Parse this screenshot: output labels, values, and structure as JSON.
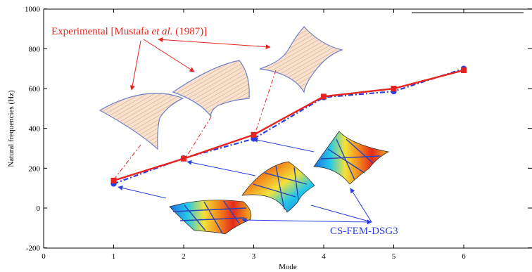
{
  "chart_data": {
    "type": "line",
    "xlabel": "Mode",
    "ylabel": "Natural frequencies (Hz)",
    "xlim": [
      0,
      7
    ],
    "ylim": [
      -200,
      1000
    ],
    "x_ticks": [
      "0",
      "1",
      "2",
      "3",
      "4",
      "5",
      "6"
    ],
    "y_ticks": [
      "-200",
      "0",
      "200",
      "400",
      "600",
      "800",
      "1000"
    ],
    "grid": false,
    "x": [
      1,
      2,
      3,
      4,
      5,
      6
    ],
    "series": [
      {
        "name": "Experimental [Mustafa et al. (1987)]",
        "color": "#e8231f",
        "marker": "square",
        "values": [
          138,
          248,
          368,
          560,
          600,
          692
        ]
      },
      {
        "name": "CS-FEM-DSG3",
        "color": "#2b3fe0",
        "marker": "circle",
        "values": [
          122,
          250,
          348,
          556,
          586,
          700
        ]
      }
    ],
    "annotations": {
      "experimental_label_prefix": "Experimental [Mustafa ",
      "experimental_label_italic": "et al.",
      "experimental_label_suffix": " (1987)]",
      "csfem_label": "CS-FEM-DSG3"
    }
  },
  "colors": {
    "experimental": "#e8231f",
    "csfem": "#2b3fe0",
    "panel_fill": "#f6e2cf",
    "panel_edge": "#6f7fc9"
  }
}
